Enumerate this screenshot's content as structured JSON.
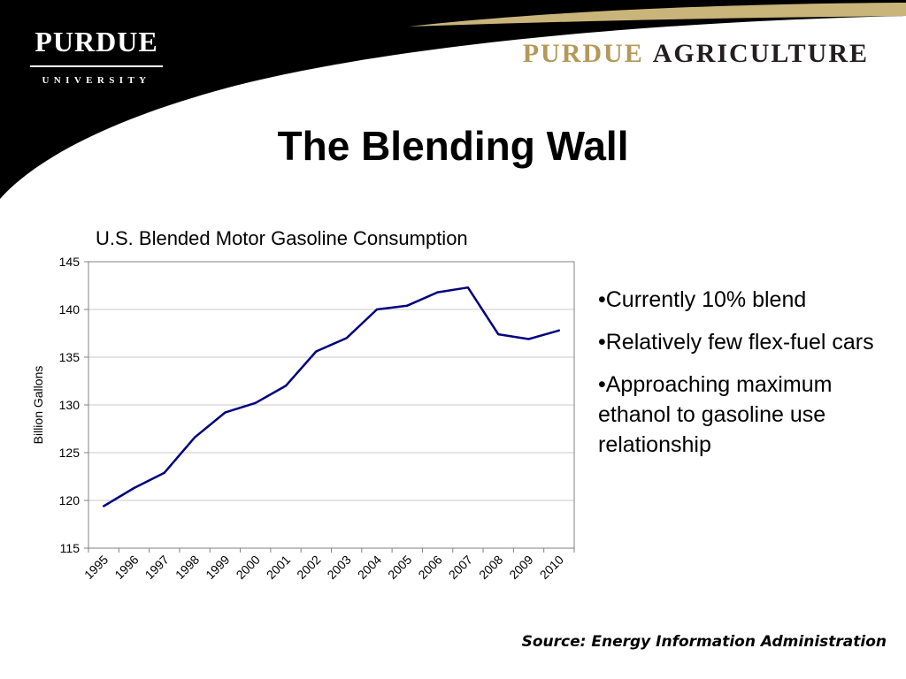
{
  "header": {
    "logo_main": "PURDUE",
    "logo_sub": "UNIVERSITY",
    "agriculture_word1": "PURDUE",
    "agriculture_word2": "AGRICULTURE",
    "colors": {
      "black": "#000000",
      "gold": "#c9b47a",
      "gold_text": "#b5985a"
    }
  },
  "slide_title": "The Blending Wall",
  "bullets": [
    "•Currently 10% blend",
    "•Relatively few flex-fuel cars",
    "•Approaching maximum ethanol to gasoline  use relationship"
  ],
  "source": "Source: Energy Information Administration",
  "chart_data": {
    "type": "line",
    "title": "U.S. Blended Motor Gasoline Consumption",
    "xlabel": "",
    "ylabel": "Billion Gallons",
    "categories": [
      "1995",
      "1996",
      "1997",
      "1998",
      "1999",
      "2000",
      "2001",
      "2002",
      "2003",
      "2004",
      "2005",
      "2006",
      "2007",
      "2008",
      "2009",
      "2010"
    ],
    "series": [
      {
        "values": [
          119.4,
          121.3,
          122.9,
          126.6,
          129.2,
          130.2,
          132.0,
          135.6,
          137.0,
          140.0,
          140.4,
          141.8,
          142.3,
          137.4,
          136.9,
          137.8
        ]
      }
    ],
    "ylim": [
      115,
      145
    ],
    "yticks": [
      115,
      120,
      125,
      130,
      135,
      140,
      145
    ],
    "grid": true,
    "legend": "none",
    "line_color": "#000080"
  }
}
